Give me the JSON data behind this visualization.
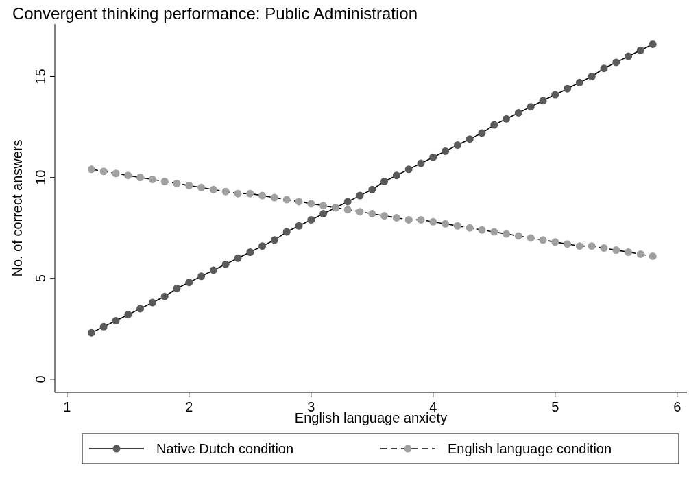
{
  "chart_data": {
    "type": "line",
    "title": "Convergent thinking performance: Public Administration",
    "xlabel": "English language anxiety",
    "ylabel": "No. of correct answers",
    "x": [
      1.2,
      1.3,
      1.4,
      1.5,
      1.6,
      1.7,
      1.8,
      1.9,
      2.0,
      2.1,
      2.2,
      2.3,
      2.4,
      2.5,
      2.6,
      2.7,
      2.8,
      2.9,
      3.0,
      3.1,
      3.2,
      3.3,
      3.4,
      3.5,
      3.6,
      3.7,
      3.8,
      3.9,
      4.0,
      4.1,
      4.2,
      4.3,
      4.4,
      4.5,
      4.6,
      4.7,
      4.8,
      4.9,
      5.0,
      5.1,
      5.2,
      5.3,
      5.4,
      5.5,
      5.6,
      5.7,
      5.8
    ],
    "series": [
      {
        "name": "Native Dutch condition",
        "color": "#5a5a5a",
        "line_style": "solid",
        "values": [
          2.3,
          2.6,
          2.9,
          3.2,
          3.5,
          3.8,
          4.1,
          4.5,
          4.8,
          5.1,
          5.4,
          5.7,
          6.0,
          6.3,
          6.6,
          6.9,
          7.3,
          7.6,
          7.9,
          8.2,
          8.5,
          8.8,
          9.1,
          9.4,
          9.8,
          10.1,
          10.4,
          10.7,
          11.0,
          11.3,
          11.6,
          11.9,
          12.2,
          12.6,
          12.9,
          13.2,
          13.5,
          13.8,
          14.1,
          14.4,
          14.7,
          15.0,
          15.4,
          15.7,
          16.0,
          16.3,
          16.6
        ]
      },
      {
        "name": "English language condition",
        "color": "#a0a0a0",
        "line_style": "dashed",
        "values": [
          10.4,
          10.3,
          10.2,
          10.1,
          10.0,
          9.9,
          9.8,
          9.7,
          9.6,
          9.5,
          9.4,
          9.3,
          9.2,
          9.2,
          9.1,
          9.0,
          8.9,
          8.8,
          8.7,
          8.6,
          8.5,
          8.4,
          8.3,
          8.2,
          8.1,
          8.0,
          7.9,
          7.9,
          7.8,
          7.7,
          7.6,
          7.5,
          7.4,
          7.3,
          7.2,
          7.1,
          7.0,
          6.9,
          6.8,
          6.7,
          6.6,
          6.6,
          6.5,
          6.4,
          6.3,
          6.2,
          6.1
        ]
      }
    ],
    "xlim": [
      0.9,
      6.08
    ],
    "xticks": [
      1,
      2,
      3,
      4,
      5,
      6
    ],
    "ylim": [
      -0.65,
      17.6
    ],
    "yticks": [
      0,
      5,
      10,
      15
    ],
    "marker": "circle",
    "grid": false,
    "legend": "bottom"
  }
}
